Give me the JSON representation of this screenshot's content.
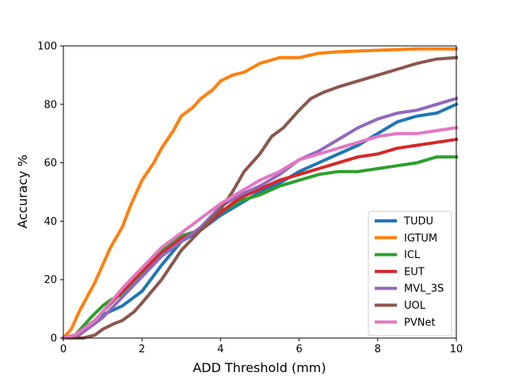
{
  "chart_data": {
    "type": "line",
    "title": "",
    "xlabel": "ADD Threshold (mm)",
    "ylabel": "Accuracy %",
    "xlim": [
      0,
      10
    ],
    "ylim": [
      0,
      100
    ],
    "xticks": [
      "0",
      "2",
      "4",
      "6",
      "8",
      "10"
    ],
    "yticks": [
      "0",
      "20",
      "40",
      "60",
      "80",
      "100"
    ],
    "grid": false,
    "legend_position": "lower-right",
    "series": [
      {
        "name": "TUDU",
        "color": "#1f77b4",
        "x": [
          0,
          0.3,
          0.5,
          0.8,
          1.0,
          1.5,
          2.0,
          2.5,
          3.0,
          3.5,
          4.0,
          4.5,
          5.0,
          5.5,
          6.0,
          6.5,
          7.0,
          7.5,
          8.0,
          8.5,
          9.0,
          9.5,
          10.0
        ],
        "y": [
          0,
          1,
          3,
          6,
          8,
          11,
          16,
          25,
          33,
          37,
          42,
          46,
          50,
          53,
          57,
          60,
          63,
          66,
          70,
          74,
          76,
          77,
          80
        ]
      },
      {
        "name": "IGTUM",
        "color": "#ff7f0e",
        "x": [
          0,
          0.2,
          0.4,
          0.6,
          0.8,
          1.0,
          1.2,
          1.5,
          1.7,
          2.0,
          2.3,
          2.5,
          2.8,
          3.0,
          3.3,
          3.5,
          3.8,
          4.0,
          4.3,
          4.6,
          5.0,
          5.5,
          6.0,
          6.5,
          7.0,
          8.0,
          9.0,
          10.0
        ],
        "y": [
          0,
          3,
          9,
          14,
          19,
          25,
          31,
          38,
          45,
          54,
          60,
          65,
          71,
          76,
          79,
          82,
          85,
          88,
          90,
          91,
          94,
          96,
          96,
          97.5,
          98,
          98.5,
          99,
          99
        ]
      },
      {
        "name": "ICL",
        "color": "#2ca02c",
        "x": [
          0,
          0.3,
          0.5,
          0.7,
          1.0,
          1.2,
          1.5,
          2.0,
          2.5,
          3.0,
          3.5,
          4.0,
          4.5,
          5.0,
          5.5,
          6.0,
          6.5,
          7.0,
          7.5,
          8.0,
          8.5,
          9.0,
          9.5,
          10.0
        ],
        "y": [
          0,
          1,
          4,
          7,
          11,
          13,
          15,
          22,
          30,
          35,
          37,
          43,
          47,
          49,
          52,
          54,
          56,
          57,
          57,
          58,
          59,
          60,
          62,
          62
        ]
      },
      {
        "name": "EUT",
        "color": "#d62728",
        "x": [
          0,
          0.3,
          0.5,
          0.8,
          1.0,
          1.5,
          2.0,
          2.5,
          3.0,
          3.5,
          4.0,
          4.5,
          5.0,
          5.5,
          6.0,
          6.5,
          7.0,
          7.5,
          8.0,
          8.5,
          9.0,
          9.5,
          10.0
        ],
        "y": [
          0,
          1,
          3,
          6,
          9,
          16,
          23,
          29,
          34,
          37,
          43,
          48,
          51,
          54,
          56,
          58,
          60,
          62,
          63,
          65,
          66,
          67,
          68
        ]
      },
      {
        "name": "MVL_3S",
        "color": "#9467bd",
        "x": [
          0,
          0.3,
          0.5,
          0.8,
          1.0,
          1.5,
          2.0,
          2.5,
          3.0,
          3.5,
          4.0,
          4.5,
          5.0,
          5.5,
          6.0,
          6.5,
          7.0,
          7.5,
          8.0,
          8.5,
          9.0,
          9.5,
          10.0
        ],
        "y": [
          0,
          0,
          2,
          5,
          7,
          14,
          21,
          28,
          33,
          38,
          45,
          49,
          52,
          56,
          61,
          64,
          68,
          72,
          75,
          77,
          78,
          80,
          82
        ]
      },
      {
        "name": "UOL",
        "color": "#8c564b",
        "x": [
          0,
          0.5,
          0.8,
          1.0,
          1.3,
          1.5,
          1.8,
          2.0,
          2.5,
          3.0,
          3.5,
          4.0,
          4.3,
          4.6,
          5.0,
          5.3,
          5.6,
          6.0,
          6.3,
          6.6,
          7.0,
          7.5,
          8.0,
          8.5,
          9.0,
          9.5,
          10.0
        ],
        "y": [
          0,
          0,
          1,
          3,
          5,
          6,
          9,
          12,
          20,
          30,
          37,
          44,
          50,
          57,
          63,
          69,
          72,
          78,
          82,
          84,
          86,
          88,
          90,
          92,
          94,
          95.5,
          96
        ]
      },
      {
        "name": "PVNet",
        "color": "#e377c2",
        "x": [
          0,
          0.3,
          0.5,
          0.8,
          1.0,
          1.5,
          2.0,
          2.5,
          3.0,
          3.5,
          4.0,
          4.5,
          5.0,
          5.5,
          6.0,
          6.5,
          7.0,
          7.5,
          8.0,
          8.5,
          9.0,
          9.5,
          10.0
        ],
        "y": [
          0,
          1,
          3,
          6,
          9,
          17,
          24,
          31,
          36,
          41,
          46,
          50,
          54,
          57,
          61,
          63,
          65,
          67,
          69,
          70,
          70,
          71,
          72
        ]
      }
    ]
  }
}
